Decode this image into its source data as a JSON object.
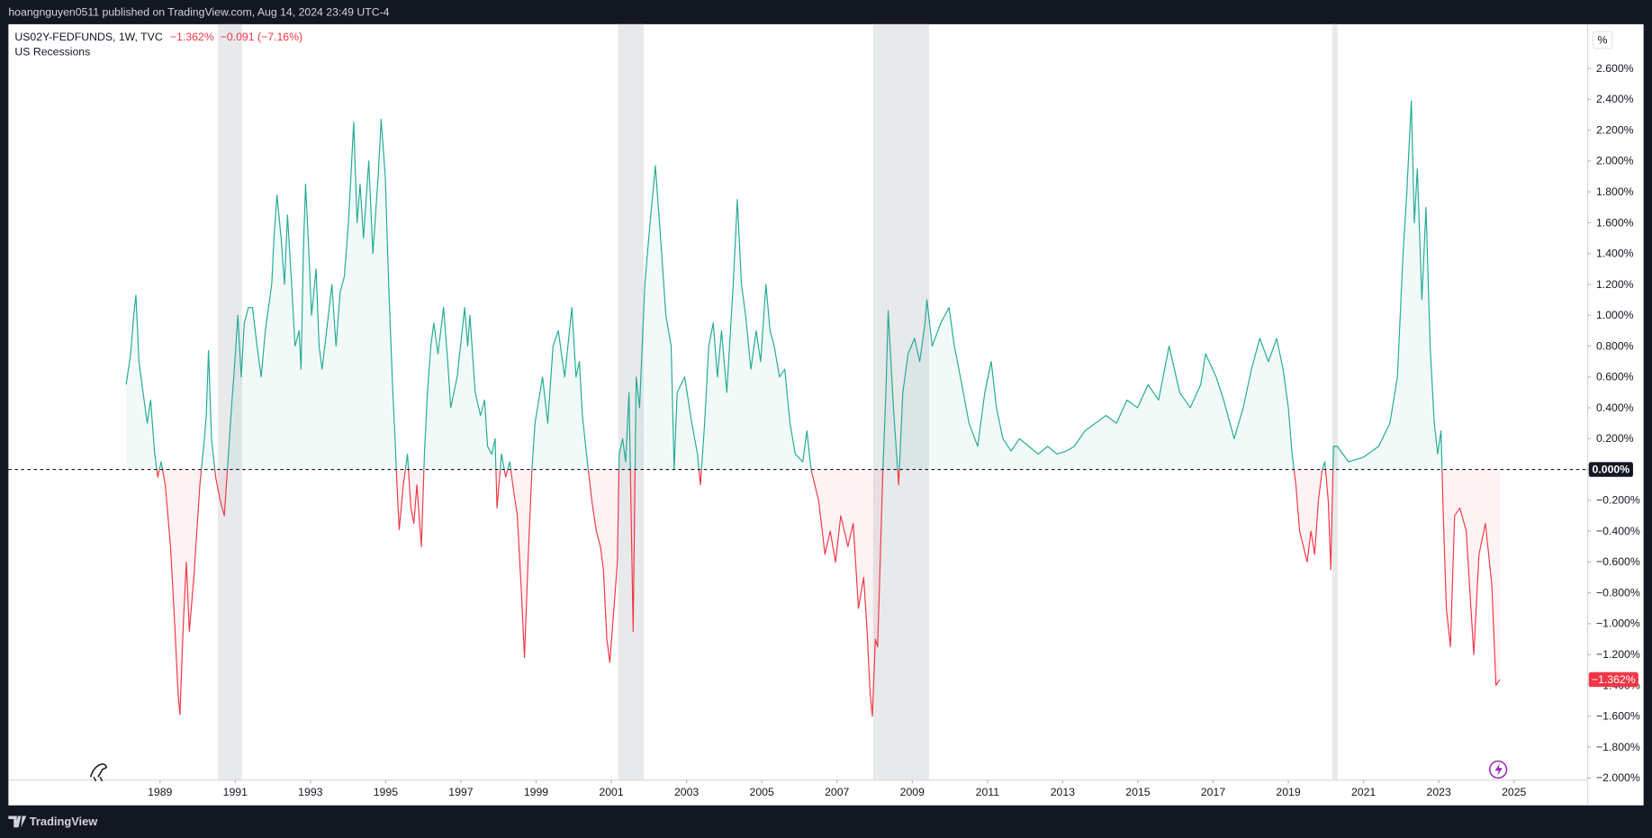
{
  "header": {
    "published": "hoangnguyen0511 published on TradingView.com, Aug 14, 2024 23:49 UTC-4",
    "footer": "TradingView"
  },
  "chart_data": {
    "type": "baseline",
    "title": "US02Y-FEDFUNDS, 1W, TVC",
    "last_label": "−1.362%",
    "change_label": "−0.091 (−7.16%)",
    "recessions_label": "US Recessions",
    "unit": "%",
    "baseline": 0,
    "colors": {
      "positive": "#22ab94",
      "negative": "#f23645",
      "recession": "#e8e9eb"
    },
    "grid": false,
    "recessions": [
      [
        1990.54,
        1991.18
      ],
      [
        2001.18,
        2001.86
      ],
      [
        2007.96,
        2009.45
      ],
      [
        2020.17,
        2020.31
      ]
    ],
    "xlim": [
      1984.97,
      2026.96
    ],
    "xticks": [
      1989,
      1991,
      1993,
      1995,
      1997,
      1999,
      2001,
      2003,
      2005,
      2007,
      2009,
      2011,
      2013,
      2015,
      2017,
      2019,
      2021,
      2023,
      2025
    ],
    "ylim": [
      -2.014,
      2.887
    ],
    "yticks": [
      {
        "value": 2.6,
        "label": "2.600%"
      },
      {
        "value": 2.4,
        "label": "2.400%"
      },
      {
        "value": 2.2,
        "label": "2.200%"
      },
      {
        "value": 2.0,
        "label": "2.000%"
      },
      {
        "value": 1.8,
        "label": "1.800%"
      },
      {
        "value": 1.6,
        "label": "1.600%"
      },
      {
        "value": 1.4,
        "label": "1.400%"
      },
      {
        "value": 1.2,
        "label": "1.200%"
      },
      {
        "value": 1.0,
        "label": "1.000%"
      },
      {
        "value": 0.8,
        "label": "0.800%"
      },
      {
        "value": 0.6,
        "label": "0.600%"
      },
      {
        "value": 0.4,
        "label": "0.400%"
      },
      {
        "value": 0.2,
        "label": "0.200%"
      },
      {
        "value": 0,
        "label": "0.000%"
      },
      {
        "value": -0.2,
        "label": "−0.200%"
      },
      {
        "value": -0.4,
        "label": "−0.400%"
      },
      {
        "value": -0.6,
        "label": "−0.600%"
      },
      {
        "value": -0.8,
        "label": "−0.800%"
      },
      {
        "value": -1.0,
        "label": "−1.000%"
      },
      {
        "value": -1.2,
        "label": "−1.200%"
      },
      {
        "value": -1.4,
        "label": "−1.400%"
      },
      {
        "value": -1.6,
        "label": "−1.600%"
      },
      {
        "value": -1.8,
        "label": "−1.800%"
      },
      {
        "value": -2.0,
        "label": "−2.000%"
      }
    ],
    "x": [
      1988.1,
      1988.22,
      1988.3,
      1988.36,
      1988.44,
      1988.55,
      1988.66,
      1988.75,
      1988.86,
      1988.94,
      1989.03,
      1989.14,
      1989.28,
      1989.39,
      1989.48,
      1989.53,
      1989.62,
      1989.7,
      1989.78,
      1989.9,
      1989.98,
      1990.06,
      1990.18,
      1990.23,
      1990.29,
      1990.37,
      1990.48,
      1990.6,
      1990.71,
      1990.82,
      1990.9,
      1990.99,
      1991.07,
      1991.16,
      1991.24,
      1991.35,
      1991.46,
      1991.58,
      1991.69,
      1991.8,
      1991.97,
      1992.03,
      1992.11,
      1992.22,
      1992.31,
      1992.39,
      1992.5,
      1992.59,
      1992.7,
      1992.75,
      1992.81,
      1992.87,
      1992.95,
      1993.03,
      1993.15,
      1993.23,
      1993.31,
      1993.43,
      1993.57,
      1993.68,
      1993.79,
      1993.9,
      1994.01,
      1994.15,
      1994.24,
      1994.32,
      1994.41,
      1994.55,
      1994.66,
      1994.8,
      1994.88,
      1994.99,
      1995.08,
      1995.19,
      1995.25,
      1995.3,
      1995.36,
      1995.47,
      1995.58,
      1995.67,
      1995.75,
      1995.83,
      1995.95,
      1996.03,
      1996.11,
      1996.2,
      1996.28,
      1996.39,
      1996.54,
      1996.65,
      1996.73,
      1996.9,
      1997.1,
      1997.18,
      1997.24,
      1997.38,
      1997.52,
      1997.63,
      1997.71,
      1997.82,
      1997.91,
      1997.96,
      1998.08,
      1998.19,
      1998.3,
      1998.38,
      1998.5,
      1998.61,
      1998.69,
      1998.8,
      1998.89,
      1998.97,
      1999.17,
      1999.31,
      1999.45,
      1999.59,
      1999.76,
      1999.95,
      2000.06,
      2000.15,
      2000.23,
      2000.34,
      2000.48,
      2000.6,
      2000.71,
      2000.79,
      2000.88,
      2000.96,
      2001.07,
      2001.16,
      2001.21,
      2001.3,
      2001.38,
      2001.47,
      2001.58,
      2001.66,
      2001.75,
      2001.89,
      2002.03,
      2002.17,
      2002.31,
      2002.45,
      2002.59,
      2002.67,
      2002.75,
      2002.95,
      2003.14,
      2003.29,
      2003.37,
      2003.48,
      2003.59,
      2003.71,
      2003.82,
      2003.93,
      2004.07,
      2004.24,
      2004.35,
      2004.46,
      2004.57,
      2004.71,
      2004.85,
      2004.97,
      2005.11,
      2005.22,
      2005.33,
      2005.47,
      2005.61,
      2005.75,
      2005.89,
      2006.09,
      2006.2,
      2006.31,
      2006.51,
      2006.68,
      2006.82,
      2006.96,
      2007.1,
      2007.29,
      2007.43,
      2007.57,
      2007.71,
      2007.8,
      2007.88,
      2007.94,
      2008.02,
      2008.08,
      2008.16,
      2008.22,
      2008.3,
      2008.36,
      2008.5,
      2008.64,
      2008.75,
      2008.89,
      2009.06,
      2009.2,
      2009.34,
      2009.39,
      2009.53,
      2009.76,
      2009.98,
      2010.12,
      2010.32,
      2010.51,
      2010.74,
      2010.93,
      2011.1,
      2011.24,
      2011.41,
      2011.63,
      2011.85,
      2012.1,
      2012.35,
      2012.6,
      2012.85,
      2013.1,
      2013.31,
      2013.59,
      2013.87,
      2014.15,
      2014.43,
      2014.71,
      2014.99,
      2015.27,
      2015.55,
      2015.83,
      2016.11,
      2016.39,
      2016.67,
      2016.8,
      2017.08,
      2017.28,
      2017.56,
      2017.8,
      2018.02,
      2018.24,
      2018.47,
      2018.69,
      2018.86,
      2019.0,
      2019.1,
      2019.2,
      2019.3,
      2019.5,
      2019.6,
      2019.7,
      2019.8,
      2019.9,
      2019.97,
      2020.06,
      2020.13,
      2020.2,
      2020.3,
      2020.6,
      2021.0,
      2021.4,
      2021.7,
      2021.9,
      2022.05,
      2022.15,
      2022.27,
      2022.35,
      2022.43,
      2022.55,
      2022.66,
      2022.77,
      2022.88,
      2022.97,
      2023.06,
      2023.12,
      2023.2,
      2023.31,
      2023.42,
      2023.56,
      2023.73,
      2023.93,
      2024.07,
      2024.24,
      2024.41,
      2024.52,
      2024.62
    ],
    "values": [
      0.55,
      0.75,
      1.0,
      1.13,
      0.7,
      0.5,
      0.3,
      0.45,
      0.1,
      -0.05,
      0.05,
      -0.1,
      -0.5,
      -1.0,
      -1.45,
      -1.59,
      -1.0,
      -0.6,
      -1.05,
      -0.7,
      -0.4,
      -0.1,
      0.2,
      0.35,
      0.77,
      0.2,
      -0.05,
      -0.2,
      -0.3,
      0.1,
      0.4,
      0.7,
      1.0,
      0.6,
      0.95,
      1.05,
      1.05,
      0.8,
      0.6,
      0.9,
      1.2,
      1.5,
      1.78,
      1.5,
      1.2,
      1.65,
      1.2,
      0.8,
      0.9,
      0.65,
      1.4,
      1.85,
      1.45,
      1.0,
      1.3,
      0.8,
      0.65,
      0.9,
      1.2,
      0.8,
      1.15,
      1.25,
      1.6,
      2.25,
      1.6,
      1.85,
      1.5,
      2.0,
      1.4,
      1.9,
      2.27,
      1.9,
      1.2,
      0.5,
      0.2,
      -0.1,
      -0.39,
      -0.1,
      0.1,
      -0.25,
      -0.35,
      -0.1,
      -0.5,
      0.1,
      0.5,
      0.8,
      0.95,
      0.75,
      1.05,
      0.7,
      0.4,
      0.6,
      1.05,
      0.8,
      1.0,
      0.5,
      0.35,
      0.45,
      0.15,
      0.1,
      0.2,
      -0.25,
      0.1,
      -0.05,
      0.05,
      -0.1,
      -0.3,
      -0.8,
      -1.22,
      -0.5,
      0,
      0.3,
      0.6,
      0.3,
      0.8,
      0.9,
      0.6,
      1.05,
      0.6,
      0.7,
      0.35,
      0.1,
      -0.2,
      -0.4,
      -0.5,
      -0.65,
      -1.1,
      -1.25,
      -0.9,
      -0.6,
      0.1,
      0.2,
      0.05,
      0.5,
      -1.05,
      0.6,
      0.4,
      1.2,
      1.6,
      1.97,
      1.5,
      1.0,
      0.8,
      0,
      0.5,
      0.6,
      0.3,
      0.1,
      -0.1,
      0.3,
      0.8,
      0.95,
      0.6,
      0.9,
      0.5,
      1.2,
      1.75,
      1.2,
      1.0,
      0.65,
      0.9,
      0.7,
      1.2,
      0.9,
      0.8,
      0.6,
      0.65,
      0.3,
      0.1,
      0.05,
      0.25,
      0,
      -0.2,
      -0.55,
      -0.4,
      -0.6,
      -0.3,
      -0.5,
      -0.35,
      -0.9,
      -0.7,
      -1.05,
      -1.45,
      -1.6,
      -1.1,
      -1.15,
      -0.5,
      0,
      0.5,
      1.03,
      0.4,
      -0.1,
      0.5,
      0.75,
      0.85,
      0.7,
      0.95,
      1.1,
      0.8,
      0.95,
      1.05,
      0.8,
      0.55,
      0.3,
      0.15,
      0.5,
      0.7,
      0.4,
      0.2,
      0.12,
      0.2,
      0.15,
      0.1,
      0.15,
      0.1,
      0.12,
      0.15,
      0.25,
      0.3,
      0.35,
      0.3,
      0.45,
      0.4,
      0.55,
      0.45,
      0.8,
      0.5,
      0.4,
      0.55,
      0.75,
      0.6,
      0.45,
      0.2,
      0.4,
      0.65,
      0.85,
      0.7,
      0.85,
      0.65,
      0.4,
      0.1,
      -0.1,
      -0.4,
      -0.6,
      -0.4,
      -0.55,
      -0.2,
      0,
      0.05,
      -0.2,
      -0.65,
      0.15,
      0.15,
      0.05,
      0.08,
      0.15,
      0.3,
      0.6,
      1.4,
      1.8,
      2.39,
      1.6,
      1.95,
      1.1,
      1.7,
      0.8,
      0.3,
      0.1,
      0.25,
      -0.3,
      -0.9,
      -1.15,
      -0.3,
      -0.25,
      -0.4,
      -1.2,
      -0.55,
      -0.35,
      -0.75,
      -1.4,
      -1.362
    ]
  }
}
